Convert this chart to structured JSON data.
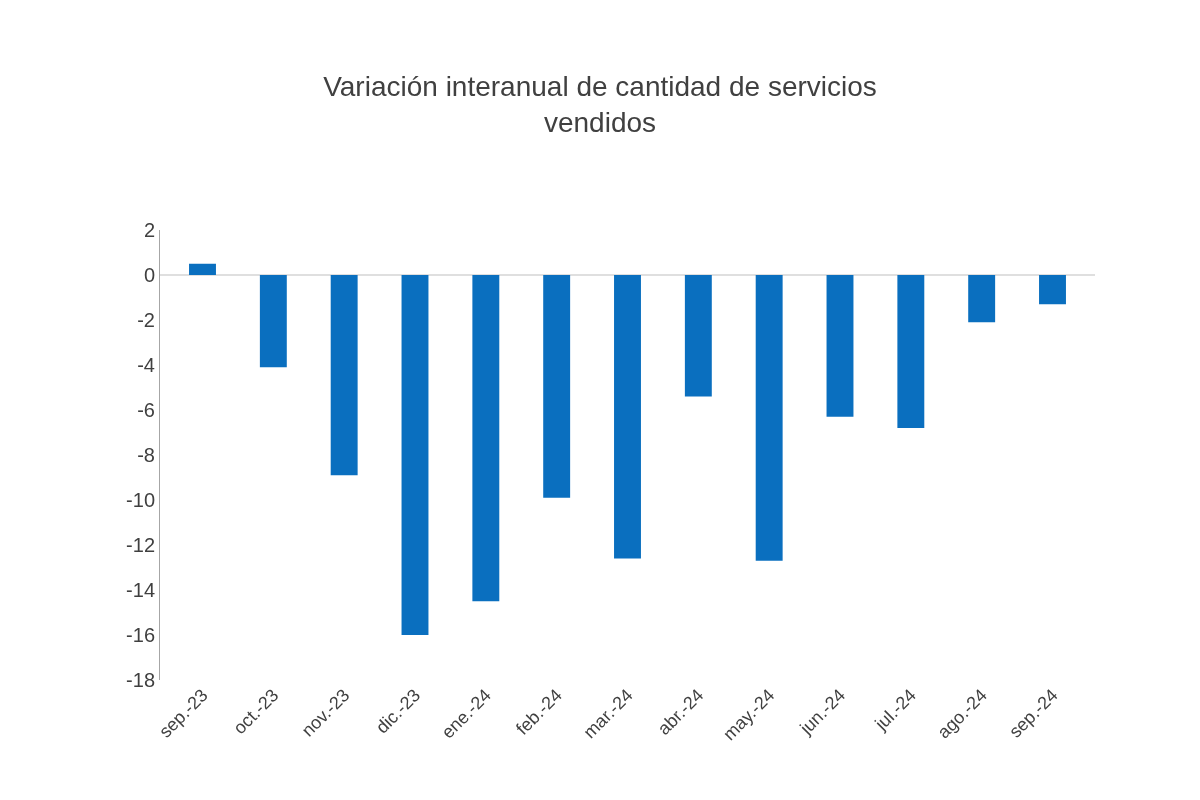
{
  "chart_data": {
    "type": "bar",
    "title": "Variación interanual de cantidad de servicios vendidos",
    "categories": [
      "sep.-23",
      "oct.-23",
      "nov.-23",
      "dic.-23",
      "ene.-24",
      "feb.-24",
      "mar.-24",
      "abr.-24",
      "may.-24",
      "jun.-24",
      "jul.-24",
      "ago.-24",
      "sep.-24"
    ],
    "values": [
      0.5,
      -4.1,
      -8.9,
      -16.0,
      -14.5,
      -9.9,
      -12.6,
      -5.4,
      -12.7,
      -6.3,
      -6.8,
      -2.1,
      -1.3
    ],
    "color": "#0a6fbf",
    "ylim": [
      -18,
      2
    ],
    "yticks": [
      -18,
      -16,
      -14,
      -12,
      -10,
      -8,
      -6,
      -4,
      -2,
      0,
      2
    ],
    "ref_lines": [
      {
        "axis": "y",
        "value": 0,
        "color": "#bfbfbf"
      }
    ]
  }
}
